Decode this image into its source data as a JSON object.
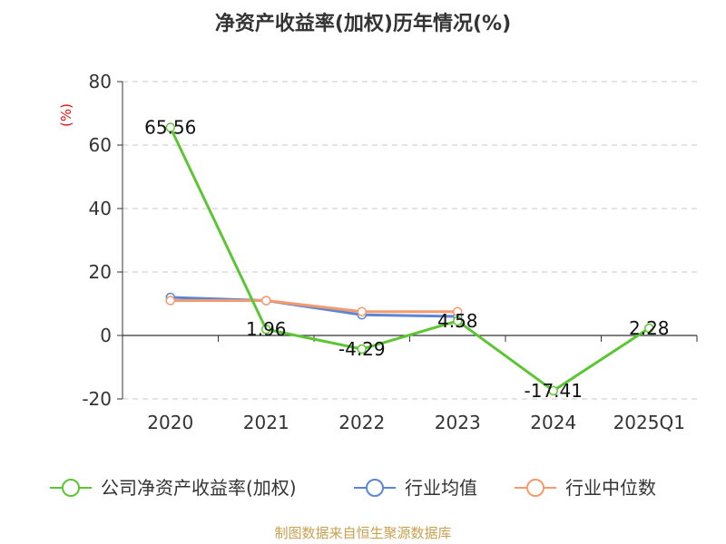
{
  "chart_data": {
    "type": "line",
    "title": "净资产收益率(加权)历年情况(%)",
    "ylabel": "(%)",
    "categories": [
      "2020",
      "2021",
      "2022",
      "2023",
      "2024",
      "2025Q1"
    ],
    "ylim": [
      -20,
      80
    ],
    "yticks": [
      -20,
      0,
      20,
      40,
      60,
      80
    ],
    "grid": true,
    "legend_position": "bottom",
    "series": [
      {
        "name": "公司净资产收益率(加权)",
        "color": "#5cc632",
        "values": [
          65.56,
          1.96,
          -4.29,
          4.58,
          -17.41,
          2.28
        ],
        "labels": [
          "65.56",
          "1.96",
          "-4.29",
          "4.58",
          "-17.41",
          "2.28"
        ]
      },
      {
        "name": "行业均值",
        "color": "#5b86d6",
        "values": [
          12.0,
          11.0,
          6.5,
          6.0,
          null,
          null
        ]
      },
      {
        "name": "行业中位数",
        "color": "#f59a6e",
        "values": [
          11.0,
          11.0,
          7.5,
          7.5,
          null,
          null
        ]
      }
    ],
    "source": "制图数据来自恒生聚源数据库"
  }
}
